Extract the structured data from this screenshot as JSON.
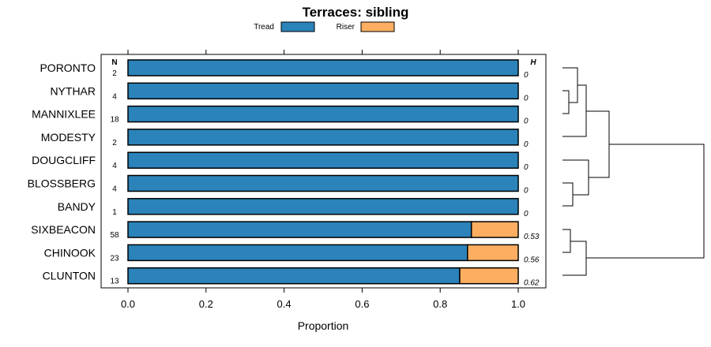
{
  "chart_data": {
    "type": "bar",
    "orientation": "horizontal",
    "stacked": true,
    "title": "Terraces: sibling",
    "xlabel": "Proportion",
    "ylabel": "",
    "xlim": [
      0,
      1
    ],
    "x_ticks": [
      "0.0",
      "0.2",
      "0.4",
      "0.6",
      "0.8",
      "1.0"
    ],
    "categories": [
      "PORONTO",
      "NYTHAR",
      "MANNIXLEE",
      "MODESTY",
      "DOUGCLIFF",
      "BLOSSBERG",
      "BANDY",
      "SIXBEACON",
      "CHINOOK",
      "CLUNTON"
    ],
    "series": [
      {
        "name": "Tread",
        "color": "#2b83ba",
        "values": [
          1.0,
          1.0,
          1.0,
          1.0,
          1.0,
          1.0,
          1.0,
          0.88,
          0.87,
          0.85
        ]
      },
      {
        "name": "Riser",
        "color": "#fdae61",
        "values": [
          0.0,
          0.0,
          0.0,
          0.0,
          0.0,
          0.0,
          0.0,
          0.12,
          0.13,
          0.15
        ]
      }
    ],
    "n_header": "N",
    "n_values": [
      "2",
      "4",
      "18",
      "2",
      "4",
      "4",
      "1",
      "58",
      "23",
      "13"
    ],
    "h_header": "H",
    "h_values": [
      "0",
      "0",
      "0",
      "0",
      "0",
      "0",
      "0",
      "0.53",
      "0.56",
      "0.62"
    ],
    "legend_position": "top",
    "dendrogram": true
  }
}
